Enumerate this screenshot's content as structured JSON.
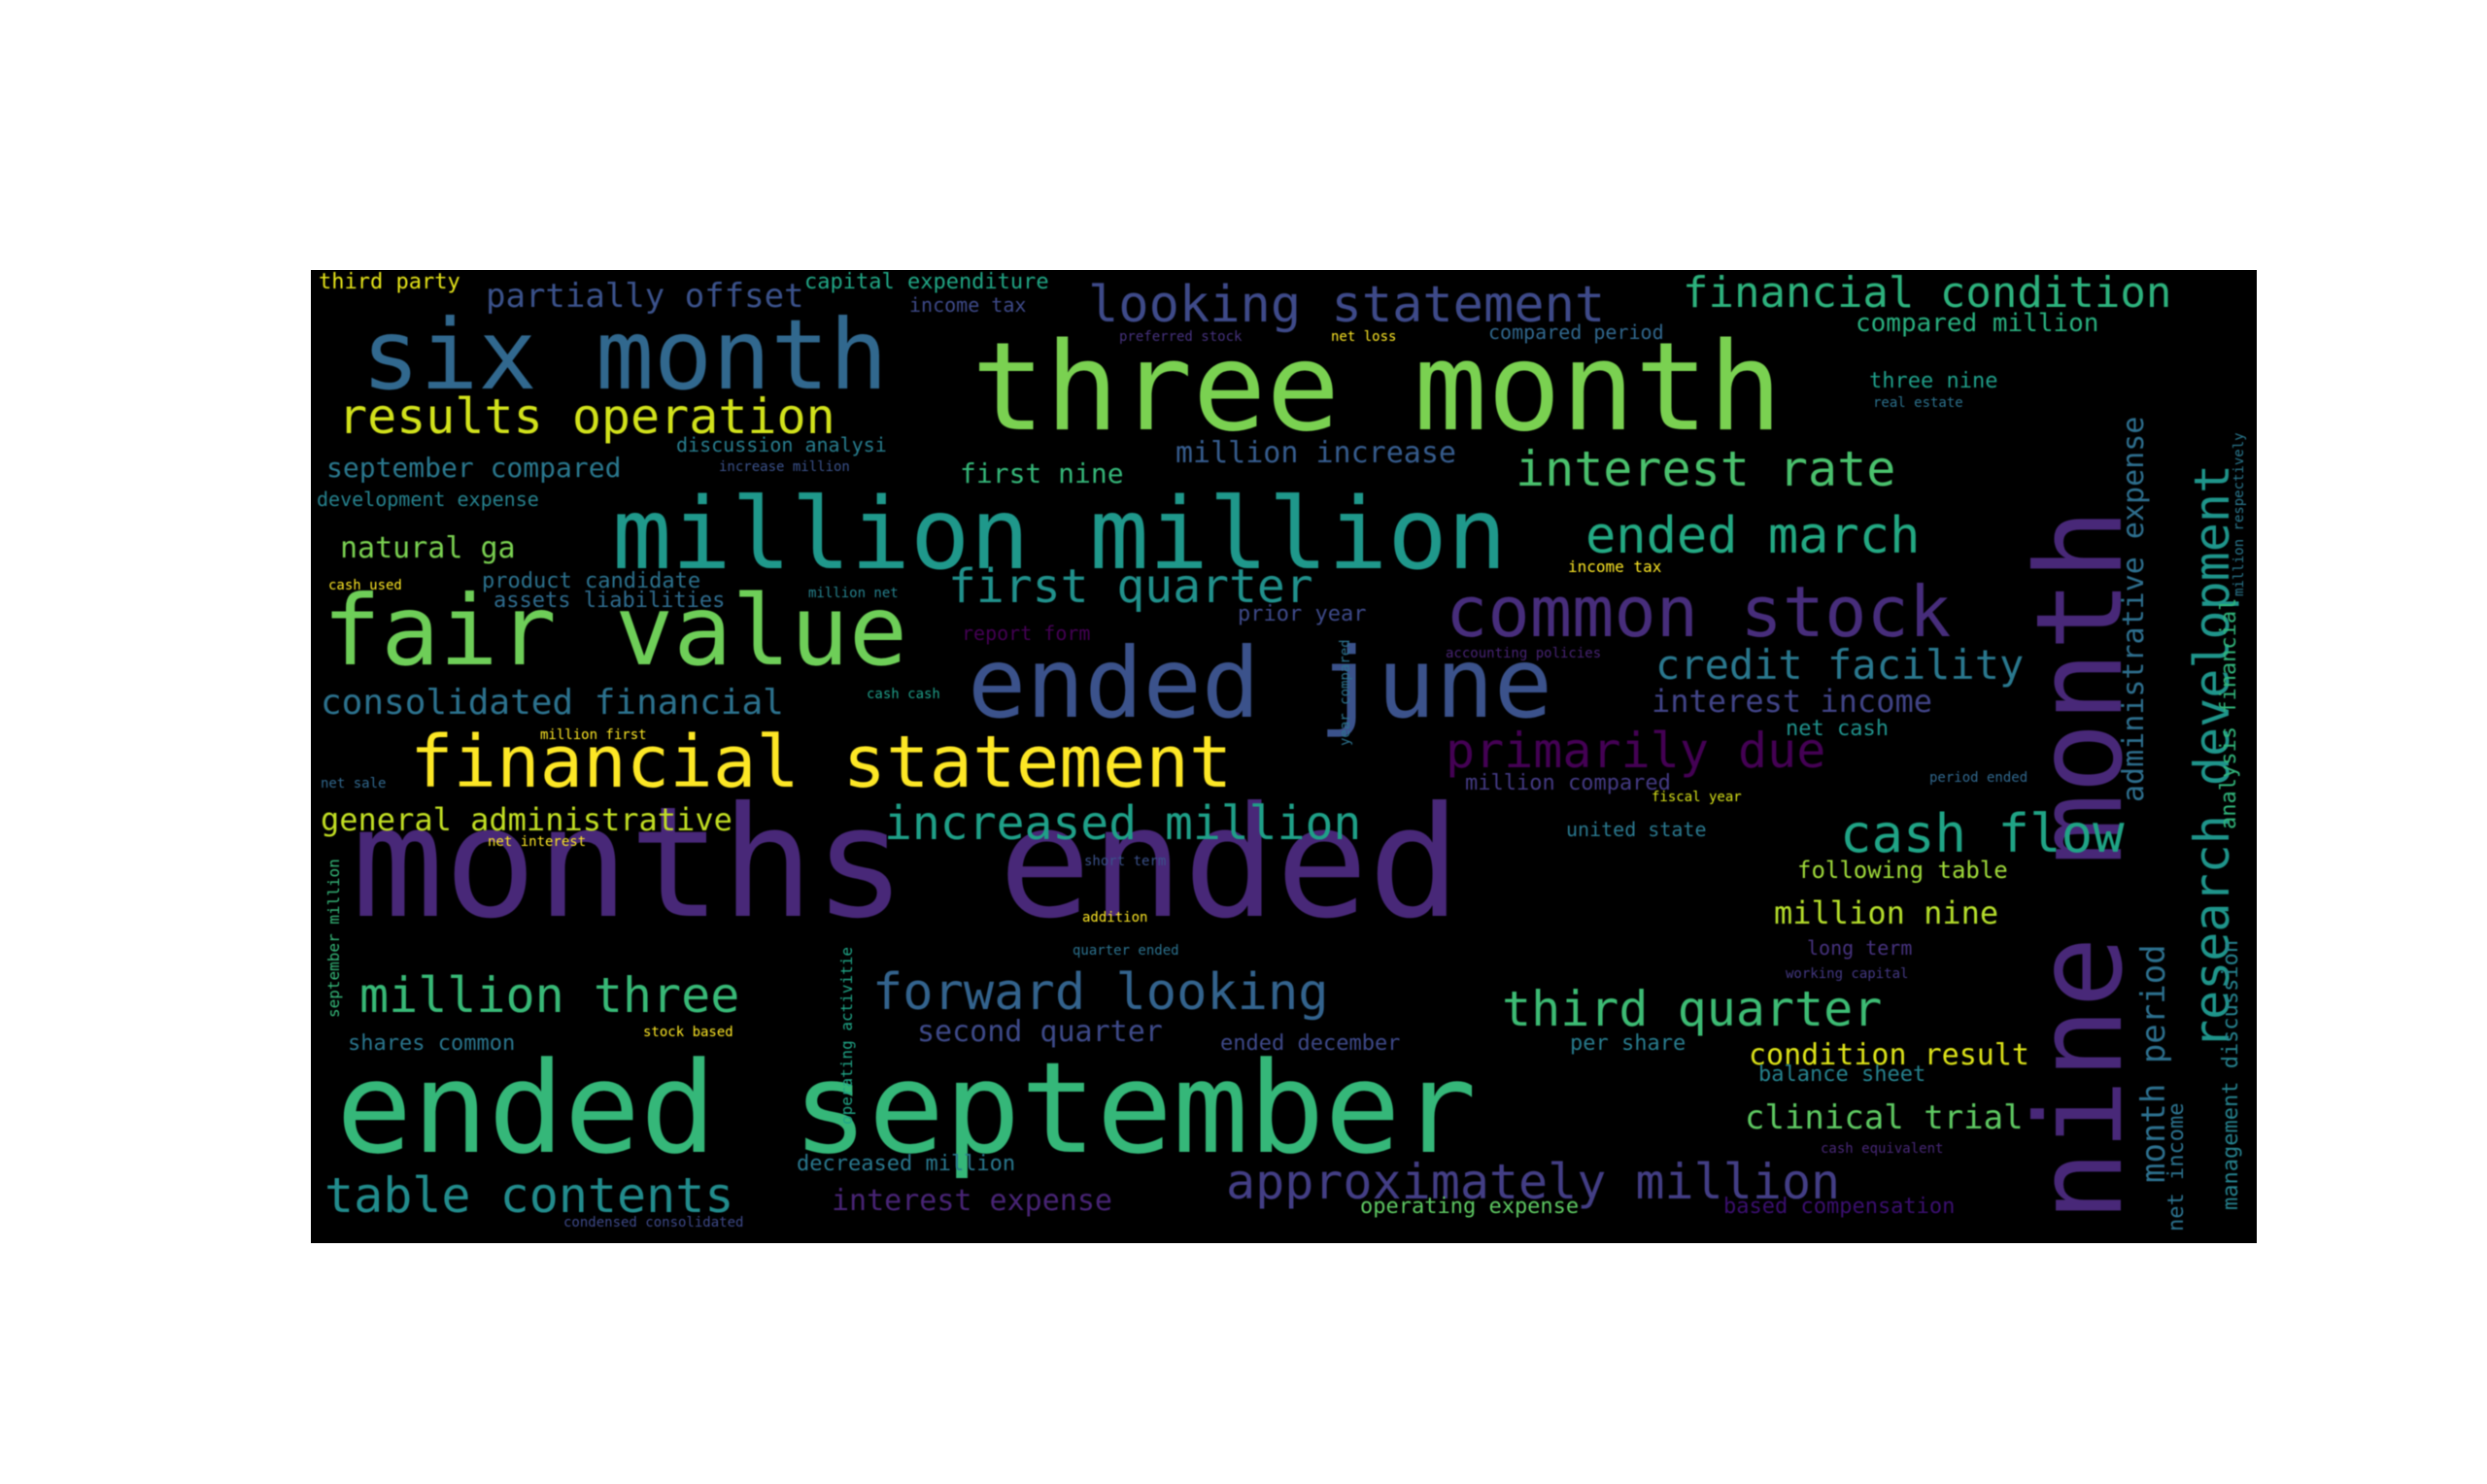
{
  "word_cloud": {
    "background": "#000000",
    "words": [
      {
        "text": "months ended",
        "color": "#482878"
      },
      {
        "text": "ended september",
        "color": "#35b779"
      },
      {
        "text": "three month",
        "color": "#7ad151"
      },
      {
        "text": "nine month",
        "color": "#482878"
      },
      {
        "text": "million million",
        "color": "#1f988b"
      },
      {
        "text": "six month",
        "color": "#31688e"
      },
      {
        "text": "fair value",
        "color": "#6ece58"
      },
      {
        "text": "ended june",
        "color": "#3b528b"
      },
      {
        "text": "financial statement",
        "color": "#fde725"
      },
      {
        "text": "common stock",
        "color": "#472d7b"
      },
      {
        "text": "results operation",
        "color": "#d2e21b"
      },
      {
        "text": "looking statement",
        "color": "#3e4a89"
      },
      {
        "text": "financial condition",
        "color": "#2db27d"
      },
      {
        "text": "interest rate",
        "color": "#4ac16d"
      },
      {
        "text": "ended march",
        "color": "#23a983"
      },
      {
        "text": "research development",
        "color": "#1f958b"
      },
      {
        "text": "first quarter",
        "color": "#21918c"
      },
      {
        "text": "credit facility",
        "color": "#2a788e"
      },
      {
        "text": "primarily due",
        "color": "#440154"
      },
      {
        "text": "increased million",
        "color": "#1fa088"
      },
      {
        "text": "cash flow",
        "color": "#20a486"
      },
      {
        "text": "forward looking",
        "color": "#33638d"
      },
      {
        "text": "million three",
        "color": "#38b977"
      },
      {
        "text": "third quarter",
        "color": "#3dbc74"
      },
      {
        "text": "table contents",
        "color": "#228c8d"
      },
      {
        "text": "approximately million",
        "color": "#433e85"
      },
      {
        "text": "partially offset",
        "color": "#3b528b"
      },
      {
        "text": "consolidated financial",
        "color": "#2c728e"
      },
      {
        "text": "general administrative",
        "color": "#c2df23"
      },
      {
        "text": "administrative expense",
        "color": "#2e6f8e"
      },
      {
        "text": "month period",
        "color": "#2d708e"
      },
      {
        "text": "condition result",
        "color": "#dde318"
      },
      {
        "text": "clinical trial",
        "color": "#5ec962"
      },
      {
        "text": "million nine",
        "color": "#b5de2b"
      },
      {
        "text": "interest income",
        "color": "#414487"
      },
      {
        "text": "analysis financial",
        "color": "#31b57b"
      },
      {
        "text": "management discussion",
        "color": "#26828e"
      },
      {
        "text": "net income",
        "color": "#2c728e"
      },
      {
        "text": "september compared",
        "color": "#2a788e"
      },
      {
        "text": "first nine",
        "color": "#35b779"
      },
      {
        "text": "million increase",
        "color": "#365c8d"
      },
      {
        "text": "natural ga",
        "color": "#7ad151"
      },
      {
        "text": "compared million",
        "color": "#29af7f"
      },
      {
        "text": "following table",
        "color": "#9fda3a"
      },
      {
        "text": "second quarter",
        "color": "#3e4a89"
      },
      {
        "text": "interest expense",
        "color": "#482475"
      },
      {
        "text": "decreased million",
        "color": "#2a788e"
      },
      {
        "text": "operating expense",
        "color": "#5ec962"
      },
      {
        "text": "based compensation",
        "color": "#3b0f70"
      },
      {
        "text": "capital expenditure",
        "color": "#21a685"
      },
      {
        "text": "third party",
        "color": "#e5e419"
      },
      {
        "text": "income tax",
        "color": "#3e4a89"
      },
      {
        "text": "development expense",
        "color": "#26828e"
      },
      {
        "text": "product candidate",
        "color": "#2c728e"
      },
      {
        "text": "assets liabilities",
        "color": "#2f6c8e"
      },
      {
        "text": "discussion analysi",
        "color": "#287d8e"
      },
      {
        "text": "balance sheet",
        "color": "#26828e"
      },
      {
        "text": "per share",
        "color": "#287c8e"
      },
      {
        "text": "ended december",
        "color": "#3e4989"
      },
      {
        "text": "shares common",
        "color": "#2a768e"
      },
      {
        "text": "net cash",
        "color": "#20928c"
      },
      {
        "text": "three nine",
        "color": "#1f9e89"
      },
      {
        "text": "united state",
        "color": "#2a788e"
      },
      {
        "text": "million compared",
        "color": "#443a83"
      },
      {
        "text": "prior year",
        "color": "#3e4a89"
      },
      {
        "text": "report form",
        "color": "#440154"
      },
      {
        "text": "long term",
        "color": "#46327e"
      },
      {
        "text": "compared period",
        "color": "#31688e"
      },
      {
        "text": "preferred stock",
        "color": "#46327e"
      },
      {
        "text": "net loss",
        "color": "#fde725"
      },
      {
        "text": "income tax",
        "color": "#fde725"
      },
      {
        "text": "cash used",
        "color": "#fde725"
      },
      {
        "text": "million net",
        "color": "#26828e"
      },
      {
        "text": "cash cash",
        "color": "#1f9e89"
      },
      {
        "text": "accounting policies",
        "color": "#482475"
      },
      {
        "text": "million first",
        "color": "#fde725"
      },
      {
        "text": "net sale",
        "color": "#31688e"
      },
      {
        "text": "net interest",
        "color": "#fde725"
      },
      {
        "text": "fiscal year",
        "color": "#d8e219"
      },
      {
        "text": "period ended",
        "color": "#31688e"
      },
      {
        "text": "short term",
        "color": "#3b528b"
      },
      {
        "text": "addition",
        "color": "#fde725"
      },
      {
        "text": "quarter ended",
        "color": "#2c728e"
      },
      {
        "text": "working capital",
        "color": "#443983"
      },
      {
        "text": "stock based",
        "color": "#fde725"
      },
      {
        "text": "cash equivalent",
        "color": "#482878"
      },
      {
        "text": "condensed consolidated",
        "color": "#3e4a89"
      },
      {
        "text": "increase million",
        "color": "#3b528b"
      },
      {
        "text": "real estate",
        "color": "#2c728e"
      },
      {
        "text": "september million",
        "color": "#35b779"
      },
      {
        "text": "operating activitie",
        "color": "#20a486"
      },
      {
        "text": "year compared",
        "color": "#2c728e"
      },
      {
        "text": "million respectively",
        "color": "#2a788e"
      }
    ]
  }
}
